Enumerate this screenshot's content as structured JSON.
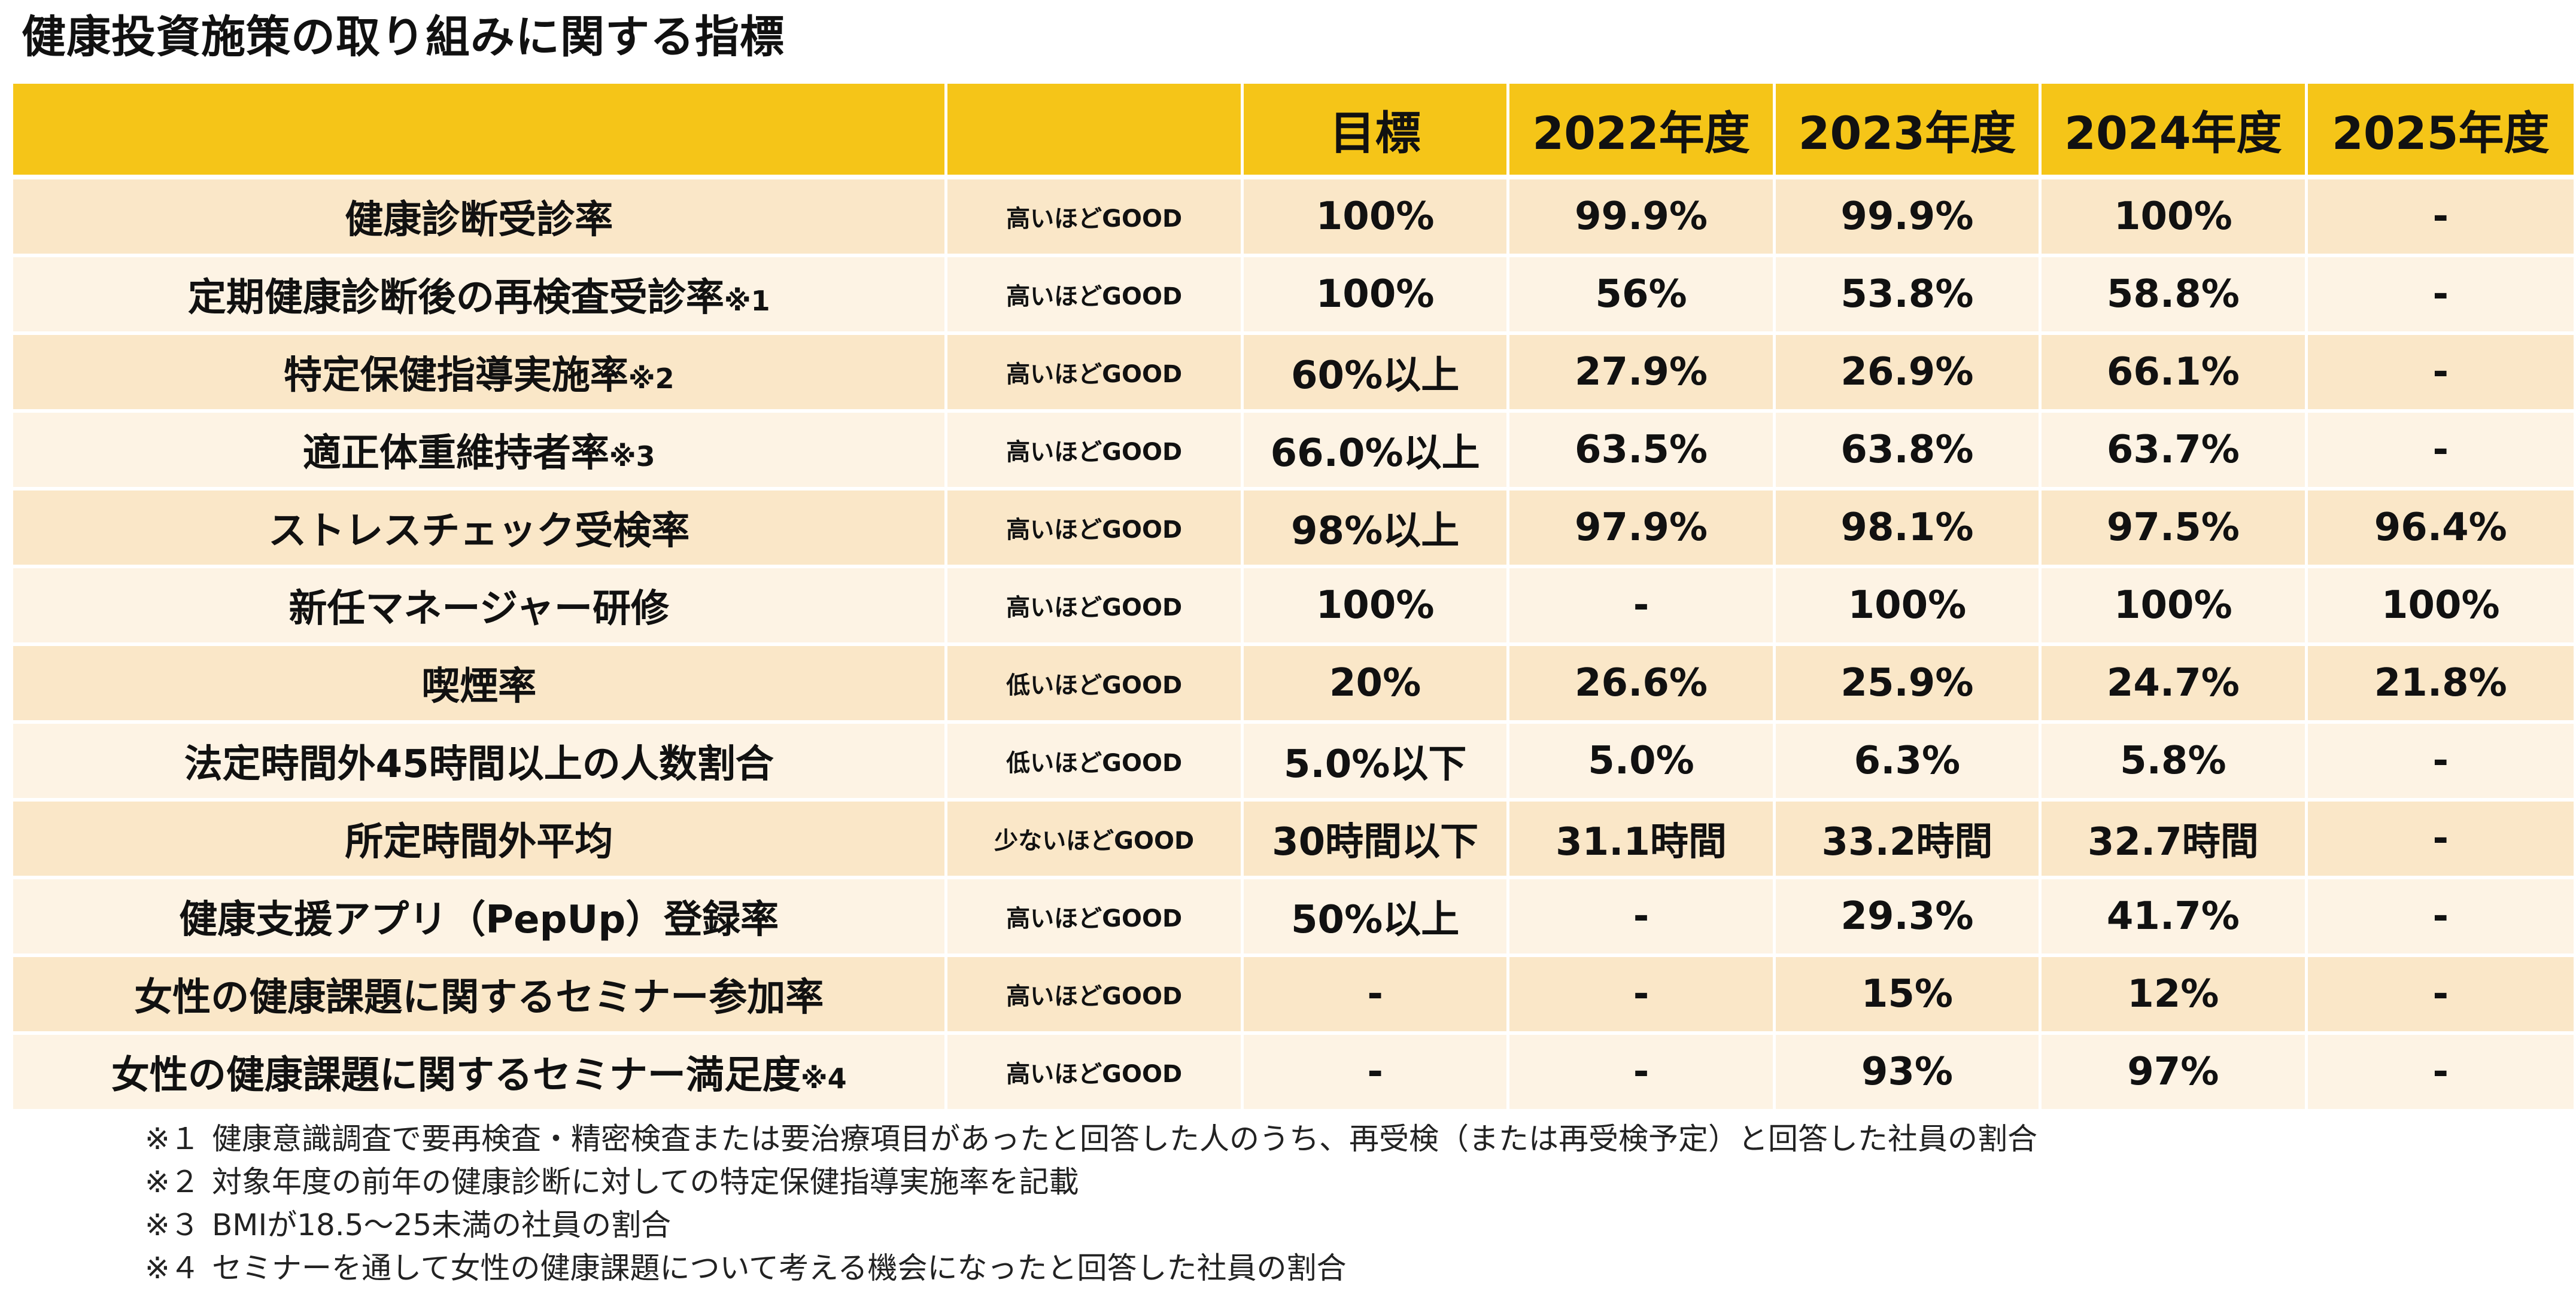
{
  "title": "健康投資施策の取り組みに関する指標",
  "table": {
    "headers": [
      "",
      "",
      "目標",
      "2022年度",
      "2023年度",
      "2024年度",
      "2025年度"
    ],
    "rows": [
      {
        "name": "健康診断受診率",
        "note": "",
        "direction": "高いほどGOOD",
        "target": "100%",
        "y2022": "99.9%",
        "y2023": "99.9%",
        "y2024": "100%",
        "y2025": "-"
      },
      {
        "name": "定期健康診断後の再検査受診率",
        "note": "※1",
        "direction": "高いほどGOOD",
        "target": "100%",
        "y2022": "56%",
        "y2023": "53.8%",
        "y2024": "58.8%",
        "y2025": "-"
      },
      {
        "name": "特定保健指導実施率",
        "note": "※2",
        "direction": "高いほどGOOD",
        "target": "60%以上",
        "y2022": "27.9%",
        "y2023": "26.9%",
        "y2024": "66.1%",
        "y2025": "-"
      },
      {
        "name": "適正体重維持者率",
        "note": "※3",
        "direction": "高いほどGOOD",
        "target": "66.0%以上",
        "y2022": "63.5%",
        "y2023": "63.8%",
        "y2024": "63.7%",
        "y2025": "-"
      },
      {
        "name": "ストレスチェック受検率",
        "note": "",
        "direction": "高いほどGOOD",
        "target": "98%以上",
        "y2022": "97.9%",
        "y2023": "98.1%",
        "y2024": "97.5%",
        "y2025": "96.4%"
      },
      {
        "name": "新任マネージャー研修",
        "note": "",
        "direction": "高いほどGOOD",
        "target": "100%",
        "y2022": "-",
        "y2023": "100%",
        "y2024": "100%",
        "y2025": "100%"
      },
      {
        "name": "喫煙率",
        "note": "",
        "direction": "低いほどGOOD",
        "target": "20%",
        "y2022": "26.6%",
        "y2023": "25.9%",
        "y2024": "24.7%",
        "y2025": "21.8%"
      },
      {
        "name": "法定時間外45時間以上の人数割合",
        "note": "",
        "direction": "低いほどGOOD",
        "target": "5.0%以下",
        "y2022": "5.0%",
        "y2023": "6.3%",
        "y2024": "5.8%",
        "y2025": "-"
      },
      {
        "name": "所定時間外平均",
        "note": "",
        "direction": "少ないほどGOOD",
        "target": "30時間以下",
        "y2022": "31.1時間",
        "y2023": "33.2時間",
        "y2024": "32.7時間",
        "y2025": "-"
      },
      {
        "name": "健康支援アプリ（PepUp）登録率",
        "note": "",
        "direction": "高いほどGOOD",
        "target": "50%以上",
        "y2022": "-",
        "y2023": "29.3%",
        "y2024": "41.7%",
        "y2025": "-"
      },
      {
        "name": "女性の健康課題に関するセミナー参加率",
        "note": "",
        "direction": "高いほどGOOD",
        "target": "-",
        "y2022": "-",
        "y2023": "15%",
        "y2024": "12%",
        "y2025": "-"
      },
      {
        "name": "女性の健康課題に関するセミナー満足度",
        "note": "※4",
        "direction": "高いほどGOOD",
        "target": "-",
        "y2022": "-",
        "y2023": "93%",
        "y2024": "97%",
        "y2025": "-"
      }
    ]
  },
  "footnotes": [
    {
      "mark": "※１",
      "text": "健康意識調査で要再検査・精密検査または要治療項目があったと回答した人のうち、再受検（または再受検予定）と回答した社員の割合"
    },
    {
      "mark": "※２",
      "text": "対象年度の前年の健康診断に対しての特定保健指導実施率を記載"
    },
    {
      "mark": "※３",
      "text": "BMIが18.5～25未満の社員の割合"
    },
    {
      "mark": "※４",
      "text": "セミナーを通して女性の健康課題について考える機会になったと回答した社員の割合"
    }
  ],
  "colors": {
    "header_bg": "#f5c518",
    "row_odd_bg": "#fae7c8",
    "row_even_bg": "#fdf3e4"
  }
}
